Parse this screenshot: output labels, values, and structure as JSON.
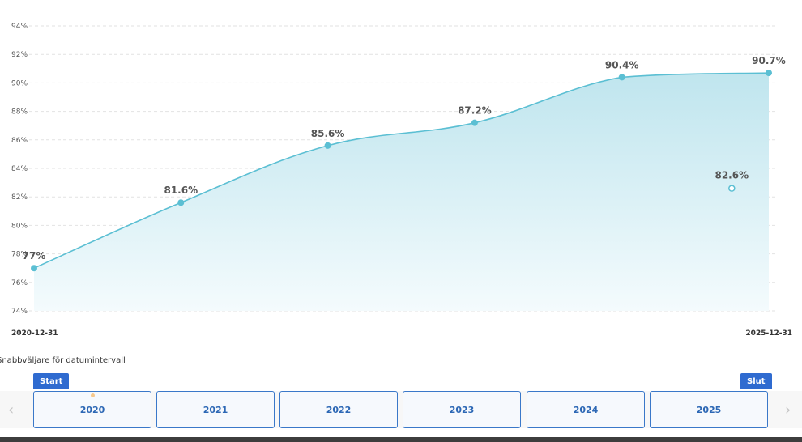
{
  "chart_data": {
    "type": "area",
    "x": [
      "2020-12-31",
      "2021-12-31",
      "2022-12-31",
      "2023-12-31",
      "2024-12-31",
      "2025-12-31"
    ],
    "values": [
      77,
      81.6,
      85.6,
      87.2,
      90.4,
      90.7
    ],
    "data_labels": [
      "77%",
      "81.6%",
      "85.6%",
      "87.2%",
      "90.4%",
      "90.7%"
    ],
    "extra_point": {
      "x": "2025-09-30",
      "value": 82.6,
      "label": "82.6%",
      "style": "hollow"
    },
    "ylim": [
      74,
      94
    ],
    "yticks": [
      "74%",
      "76%",
      "78%",
      "80%",
      "82%",
      "84%",
      "86%",
      "88%",
      "90%",
      "92%",
      "94%"
    ],
    "x_start_label": "2020-12-31",
    "x_end_label": "2025-12-31",
    "grid": true,
    "line_color": "#5bbfd3",
    "fill_color": "#c9e9f0"
  },
  "range_picker": {
    "label": "Snabbväljare för datumintervall",
    "start_flag": "Start",
    "end_flag": "Slut",
    "years": [
      "2020",
      "2021",
      "2022",
      "2023",
      "2024",
      "2025"
    ]
  }
}
